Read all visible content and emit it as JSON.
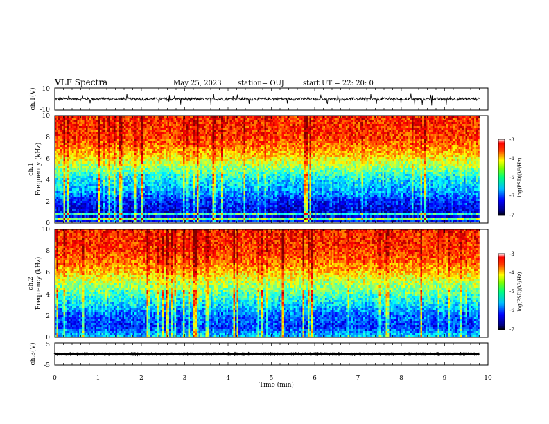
{
  "header": {
    "title": "VLF Spectra",
    "date": "May 25, 2023",
    "station": "station= OUJ",
    "start": "start  UT  =   22: 20: 0"
  },
  "colors": {
    "spectrum_low": "#00007f",
    "spectrum_mid": "#00ff00",
    "spectrum_high": "#ff0000",
    "trace": "#000000"
  },
  "chart_data": [
    {
      "type": "line",
      "name": "ch.1 waveform",
      "ylabel": "ch.1(V)",
      "ylim": [
        -10,
        10
      ],
      "ytick_labels": [
        "10",
        "-10"
      ],
      "xlim": [
        0,
        10
      ],
      "x_end": 9.8,
      "baseline": 0,
      "spread": 1.2
    },
    {
      "type": "heatmap",
      "name": "ch.1 spectrogram",
      "ylabel_line1": "ch.1",
      "ylabel_line2": "Frequency  (kHz)",
      "ylim": [
        0,
        10
      ],
      "ytick_labels": [
        "0",
        "2",
        "4",
        "6",
        "8",
        "10"
      ],
      "xlim": [
        0,
        10
      ],
      "x_end": 9.8,
      "colorbar": {
        "label": "log(PSD)(V²/Hz)",
        "range": [
          -7,
          -3
        ],
        "tick_labels": [
          "-3",
          "-4",
          "-5",
          "-6",
          "-7"
        ]
      },
      "profile_khz": [
        0,
        1,
        2,
        3,
        4,
        5,
        6,
        7,
        8,
        10
      ],
      "profile_log_psd": [
        -6.4,
        -6.6,
        -6.3,
        -5.8,
        -5.5,
        -5.0,
        -4.4,
        -4.0,
        -3.7,
        -3.6
      ]
    },
    {
      "type": "heatmap",
      "name": "ch.2 spectrogram",
      "ylabel_line1": "ch.2",
      "ylabel_line2": "Frequency  (kHz)",
      "ylim": [
        0,
        10
      ],
      "ytick_labels": [
        "0",
        "2",
        "4",
        "6",
        "8",
        "10"
      ],
      "xlim": [
        0,
        10
      ],
      "x_end": 9.8,
      "colorbar": {
        "label": "log(PSD)(V²/Hz)",
        "range": [
          -7,
          -3
        ],
        "tick_labels": [
          "-3",
          "-4",
          "-5",
          "-6",
          "-7"
        ]
      },
      "profile_khz": [
        0,
        1,
        2,
        3,
        4,
        5,
        6,
        7,
        8,
        10
      ],
      "profile_log_psd": [
        -5.6,
        -6.3,
        -6.1,
        -5.6,
        -5.2,
        -4.8,
        -4.3,
        -3.9,
        -3.7,
        -3.6
      ]
    },
    {
      "type": "line",
      "name": "ch.3 waveform",
      "ylabel": "ch.3(V)",
      "ylim": [
        -5,
        5
      ],
      "ytick_labels": [
        "5",
        "-5"
      ],
      "xlim": [
        0,
        10
      ],
      "x_end": 9.8,
      "baseline": 0,
      "spread": 0.15
    }
  ],
  "xaxis": {
    "label": "Time  (min)",
    "tick_labels": [
      "0",
      "1",
      "2",
      "3",
      "4",
      "5",
      "6",
      "7",
      "8",
      "9",
      "10"
    ]
  }
}
